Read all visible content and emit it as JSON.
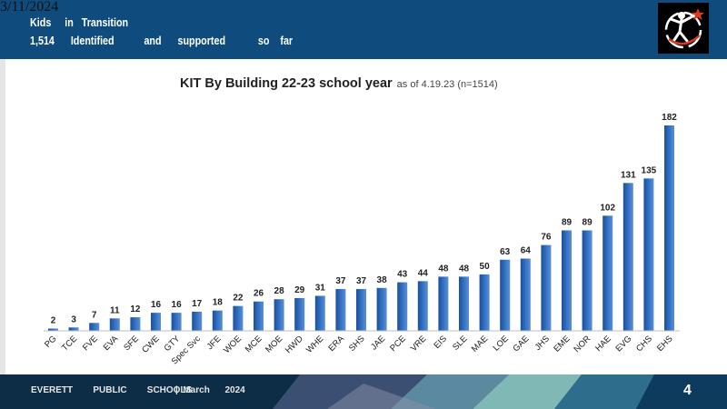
{
  "header": {
    "date": "3/11/2024",
    "line1": "Kids     in   Transition",
    "line2": "1,514      Identified           and      supported            so    far"
  },
  "footer": {
    "org": "EVERETT        PUBLIC        SCHOOLS",
    "date": "|  March      2024",
    "page": "4"
  },
  "colors": {
    "header": "#0f4c7d",
    "bar": "#2f6ec0",
    "footer": "#0c2d45"
  },
  "chart_data": {
    "type": "bar",
    "title": "KIT By Building 22-23 school year",
    "subtitle": "as of 4.19.23 (n=1514)",
    "categories": [
      "PG",
      "TCE",
      "FVE",
      "EVA",
      "SFE",
      "CWE",
      "GTY",
      "Spec Svc",
      "JFE",
      "WOE",
      "MCE",
      "MOE",
      "HWD",
      "WHE",
      "ERA",
      "SHS",
      "JAE",
      "PCE",
      "VRE",
      "EIS",
      "SLE",
      "MAE",
      "LOE",
      "GAE",
      "JHS",
      "EME",
      "NOR",
      "HAE",
      "EVG",
      "CHS",
      "EHS"
    ],
    "values": [
      2,
      3,
      7,
      11,
      12,
      16,
      16,
      17,
      18,
      22,
      26,
      28,
      29,
      31,
      37,
      37,
      38,
      43,
      44,
      48,
      48,
      50,
      63,
      64,
      76,
      89,
      89,
      102,
      131,
      135,
      182
    ],
    "ylim": [
      0,
      182
    ],
    "grid": false,
    "legend": "none"
  }
}
